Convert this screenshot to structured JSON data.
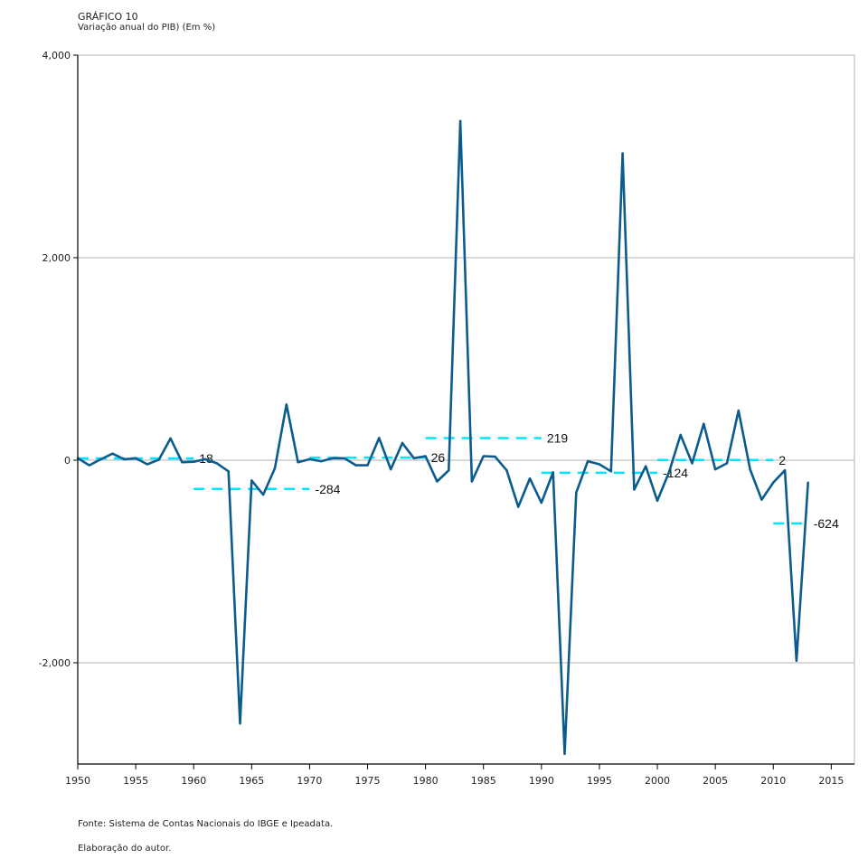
{
  "header": {
    "figure_label": "GRÁFICO 10",
    "subtitle": "Variação anual do PIB) (Em %)"
  },
  "footer": {
    "source": "Fonte: Sistema de Contas Nacionais do IBGE e Ipeadata.",
    "credit": "Elaboração do autor."
  },
  "colors": {
    "series_line": "#0a5c8f",
    "average_dash": "#00e5ff",
    "grid": "#b0b0b0",
    "axis": "#000000"
  },
  "chart_data": {
    "type": "line",
    "title": "Variação anual do PIB) (Em %)",
    "xlabel": "",
    "ylabel": "",
    "xlim": [
      1950,
      2017
    ],
    "ylim": [
      -3000,
      4000
    ],
    "x_ticks": [
      1950,
      1955,
      1960,
      1965,
      1970,
      1975,
      1980,
      1985,
      1990,
      1995,
      2000,
      2005,
      2010,
      2015
    ],
    "y_ticks": [
      {
        "value": -2000,
        "label": "-2,000"
      },
      {
        "value": 0,
        "label": "0"
      },
      {
        "value": 2000,
        "label": "2,000"
      },
      {
        "value": 4000,
        "label": "4,000"
      }
    ],
    "grid": "horizontal",
    "series": [
      {
        "x": [
          1950,
          1951,
          1952,
          1953,
          1954,
          1955,
          1956,
          1957,
          1958,
          1959,
          1960,
          1961,
          1962,
          1963,
          1964,
          1965,
          1966,
          1967,
          1968,
          1969,
          1970,
          1971,
          1972,
          1973,
          1974,
          1975,
          1976,
          1977,
          1978,
          1979,
          1980,
          1981,
          1982,
          1983,
          1984,
          1985,
          1986,
          1987,
          1988,
          1989,
          1990,
          1991,
          1992,
          1993,
          1994,
          1995,
          1996,
          1997,
          1998,
          1999,
          2000,
          2001,
          2002,
          2003,
          2004,
          2005,
          2006,
          2007,
          2008,
          2009,
          2010,
          2011,
          2012,
          2013
        ],
        "values": [
          20,
          -50,
          10,
          65,
          10,
          20,
          -40,
          5,
          215,
          -20,
          -15,
          10,
          -30,
          -110,
          -2600,
          -200,
          -340,
          -80,
          550,
          -20,
          10,
          -10,
          20,
          20,
          -50,
          -50,
          220,
          -90,
          170,
          20,
          40,
          -210,
          -100,
          3350,
          -210,
          40,
          35,
          -100,
          -460,
          -180,
          -420,
          -120,
          -2900,
          -320,
          -10,
          -40,
          -110,
          3030,
          -290,
          -60,
          -400,
          -120,
          250,
          -30,
          360,
          -90,
          -30,
          490,
          -90,
          -390,
          -220,
          -100,
          -1980,
          -220
        ]
      }
    ],
    "period_averages": [
      {
        "start": 1950,
        "end": 1960,
        "value": 18,
        "label": "18"
      },
      {
        "start": 1960,
        "end": 1970,
        "value": -284,
        "label": "-284"
      },
      {
        "start": 1970,
        "end": 1980,
        "value": 26,
        "label": "26"
      },
      {
        "start": 1980,
        "end": 1990,
        "value": 219,
        "label": "219"
      },
      {
        "start": 1990,
        "end": 2000,
        "value": -124,
        "label": "-124"
      },
      {
        "start": 2000,
        "end": 2010,
        "value": 2,
        "label": "2"
      },
      {
        "start": 2010,
        "end": 2013,
        "value": -624,
        "label": "-624"
      }
    ]
  }
}
